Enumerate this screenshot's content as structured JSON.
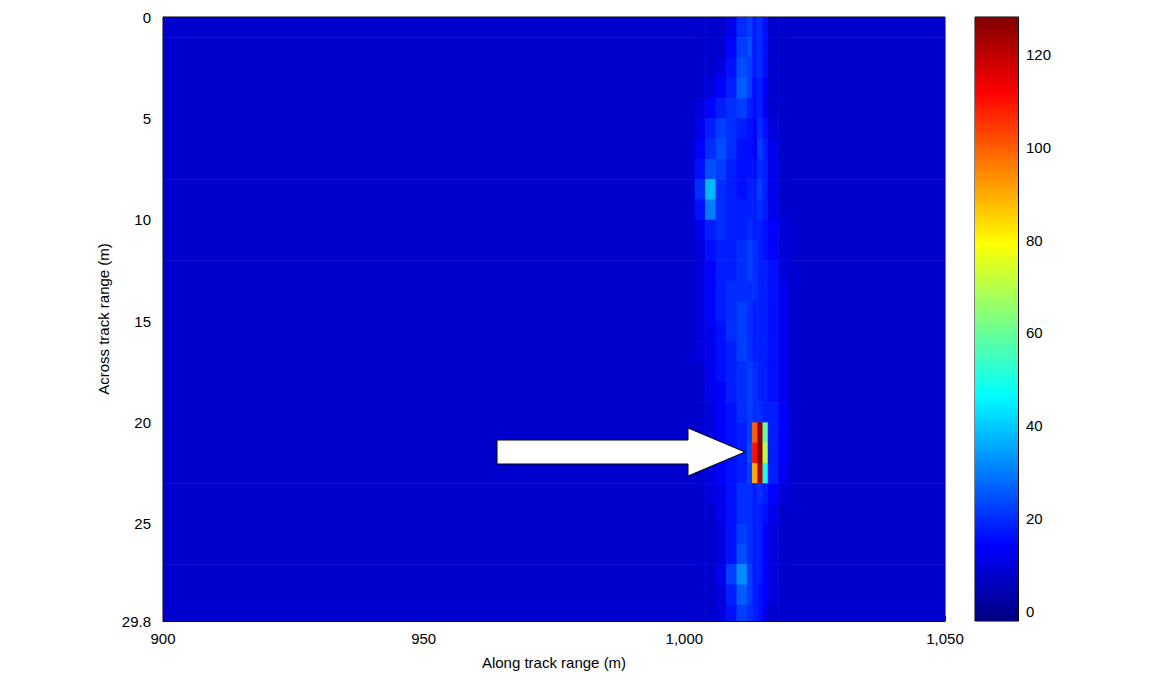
{
  "chart_data": {
    "type": "heatmap",
    "xlabel": "Along track range (m)",
    "ylabel": "Across track range (m)",
    "xlim": [
      900,
      1050
    ],
    "xticks": [
      900,
      950,
      1000,
      1050
    ],
    "ylim": [
      0,
      29.8
    ],
    "yticks": [
      0,
      5,
      10,
      15,
      20,
      25
    ],
    "x_edges": [
      900,
      1002,
      1004,
      1006,
      1008,
      1010,
      1012,
      1013,
      1014,
      1015,
      1016,
      1018,
      1020,
      1050
    ],
    "y_edges": [
      0,
      1,
      2,
      3,
      4,
      5,
      6,
      7,
      8,
      9,
      10,
      11,
      12,
      13,
      14,
      15,
      16,
      17,
      18,
      19,
      20,
      21,
      22,
      23,
      24,
      25,
      26,
      27,
      28,
      29,
      29.8
    ],
    "cells": [
      [
        8,
        8,
        8,
        8,
        12,
        20,
        22,
        18,
        20,
        16,
        8,
        8,
        8
      ],
      [
        8,
        8,
        8,
        8,
        14,
        22,
        24,
        18,
        20,
        16,
        8,
        8,
        8
      ],
      [
        8,
        8,
        8,
        10,
        16,
        24,
        22,
        18,
        20,
        16,
        8,
        8,
        8
      ],
      [
        8,
        8,
        10,
        14,
        18,
        26,
        22,
        16,
        18,
        14,
        8,
        8,
        8
      ],
      [
        8,
        10,
        14,
        18,
        20,
        22,
        18,
        16,
        18,
        12,
        8,
        8,
        8
      ],
      [
        8,
        12,
        18,
        22,
        20,
        18,
        16,
        14,
        20,
        16,
        10,
        8,
        8
      ],
      [
        8,
        14,
        20,
        24,
        20,
        16,
        16,
        14,
        22,
        18,
        12,
        8,
        8
      ],
      [
        8,
        16,
        24,
        22,
        18,
        16,
        16,
        16,
        20,
        18,
        12,
        8,
        8
      ],
      [
        8,
        20,
        38,
        20,
        18,
        16,
        18,
        18,
        22,
        18,
        12,
        8,
        8
      ],
      [
        8,
        16,
        30,
        20,
        18,
        18,
        18,
        18,
        20,
        18,
        12,
        8,
        8
      ],
      [
        8,
        12,
        18,
        20,
        18,
        18,
        20,
        18,
        18,
        16,
        14,
        10,
        8
      ],
      [
        8,
        10,
        16,
        18,
        18,
        20,
        22,
        20,
        18,
        16,
        14,
        10,
        8
      ],
      [
        8,
        10,
        14,
        18,
        18,
        20,
        22,
        20,
        18,
        18,
        16,
        10,
        8
      ],
      [
        8,
        10,
        14,
        18,
        20,
        20,
        20,
        20,
        18,
        18,
        16,
        12,
        8
      ],
      [
        8,
        10,
        14,
        18,
        20,
        22,
        20,
        18,
        18,
        18,
        16,
        12,
        8
      ],
      [
        8,
        10,
        12,
        16,
        20,
        22,
        20,
        18,
        18,
        18,
        16,
        12,
        8
      ],
      [
        8,
        10,
        12,
        16,
        18,
        22,
        20,
        18,
        18,
        18,
        16,
        12,
        8
      ],
      [
        8,
        8,
        12,
        16,
        18,
        20,
        22,
        20,
        18,
        18,
        16,
        12,
        8
      ],
      [
        8,
        8,
        12,
        14,
        18,
        20,
        22,
        20,
        18,
        18,
        16,
        12,
        8
      ],
      [
        8,
        8,
        10,
        14,
        16,
        20,
        22,
        20,
        20,
        18,
        18,
        14,
        8
      ],
      [
        8,
        8,
        10,
        14,
        16,
        18,
        22,
        100,
        125,
        60,
        18,
        14,
        8
      ],
      [
        8,
        8,
        10,
        14,
        16,
        18,
        24,
        110,
        127,
        70,
        18,
        14,
        8
      ],
      [
        8,
        8,
        10,
        14,
        16,
        18,
        22,
        90,
        122,
        50,
        18,
        12,
        8
      ],
      [
        8,
        8,
        10,
        12,
        16,
        20,
        20,
        18,
        20,
        18,
        14,
        10,
        8
      ],
      [
        8,
        8,
        8,
        12,
        16,
        20,
        20,
        18,
        18,
        16,
        12,
        8,
        8
      ],
      [
        8,
        8,
        8,
        10,
        16,
        22,
        20,
        18,
        18,
        14,
        10,
        8,
        8
      ],
      [
        8,
        8,
        8,
        10,
        16,
        24,
        20,
        18,
        18,
        14,
        10,
        8,
        8
      ],
      [
        8,
        8,
        8,
        12,
        22,
        32,
        22,
        18,
        18,
        14,
        10,
        8,
        8
      ],
      [
        8,
        8,
        8,
        10,
        18,
        26,
        22,
        18,
        16,
        14,
        10,
        8,
        8
      ],
      [
        8,
        8,
        8,
        10,
        16,
        22,
        20,
        18,
        16,
        12,
        8,
        8,
        8
      ]
    ],
    "colorbar_range": [
      -2,
      128
    ],
    "colorbar_ticks": [
      0,
      20,
      40,
      60,
      80,
      100,
      120
    ]
  }
}
